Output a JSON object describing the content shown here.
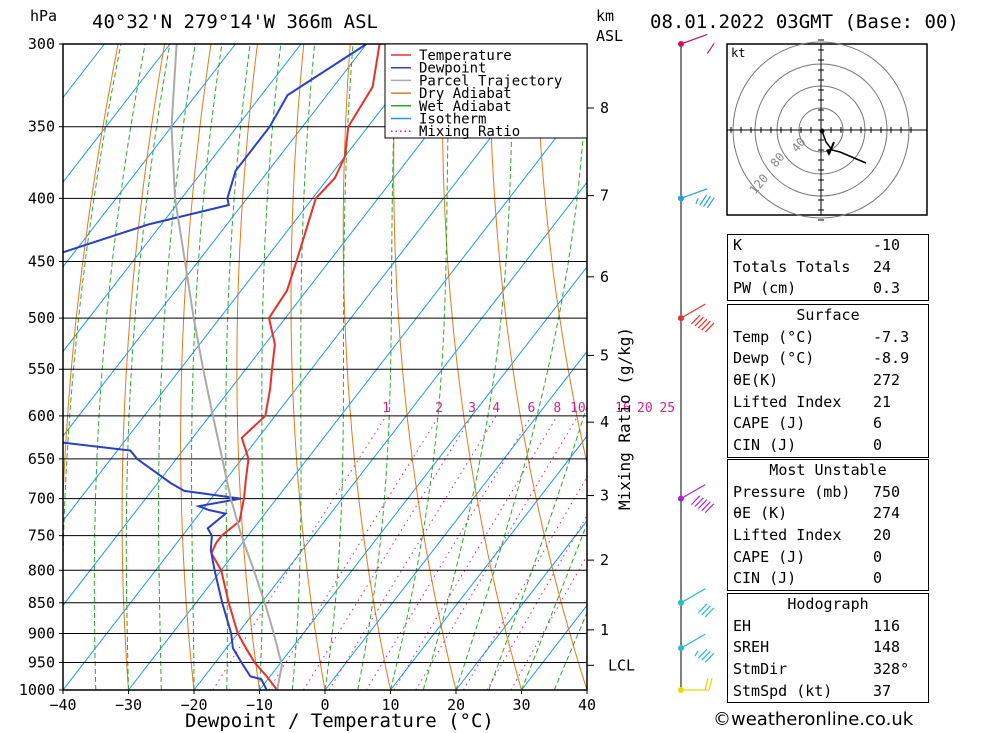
{
  "header": {
    "units_p": "hPa",
    "location": "40°32'N  279°14'W  366m  ASL",
    "km_label": "km",
    "asl_label": "ASL",
    "datetime": "08.01.2022  03GMT  (Base: 00)"
  },
  "chart_data": {
    "type": "line",
    "title": "40°32'N  279°14'W  366m  ASL",
    "xlabel": "Dewpoint / Temperature (°C)",
    "ylabel": "hPa",
    "xlim": [
      -40,
      40
    ],
    "ylim": [
      1000,
      300
    ],
    "x_ticks": [
      -40,
      -30,
      -20,
      -10,
      0,
      10,
      20,
      30,
      40
    ],
    "p_ticks": [
      300,
      350,
      400,
      450,
      500,
      550,
      600,
      650,
      700,
      750,
      800,
      850,
      900,
      950,
      1000
    ],
    "km_ticks": [
      {
        "p": 338,
        "label": "8"
      },
      {
        "p": 398,
        "label": "7"
      },
      {
        "p": 463,
        "label": "6"
      },
      {
        "p": 536,
        "label": "5"
      },
      {
        "p": 607,
        "label": "4"
      },
      {
        "p": 696,
        "label": "3"
      },
      {
        "p": 785,
        "label": "2"
      },
      {
        "p": 894,
        "label": "1"
      },
      {
        "p": 955,
        "label": "LCL"
      }
    ],
    "mixing_ratio_label": "Mixing Ratio (g/kg)",
    "mixing_ratio_values": [
      "1",
      "2",
      "3",
      "4",
      "6",
      "8",
      "10",
      "16",
      "20",
      "25"
    ],
    "legend": [
      "Temperature",
      "Dewpoint",
      "Parcel Trajectory",
      "Dry Adiabat",
      "Wet Adiabat",
      "Isotherm",
      "Mixing Ratio"
    ],
    "legend_position": "top-right",
    "series": [
      {
        "name": "Temperature",
        "color": "#e8302a",
        "points": [
          [
            1000,
            -7.3
          ],
          [
            975,
            -10.5
          ],
          [
            950,
            -14
          ],
          [
            925,
            -17
          ],
          [
            900,
            -20
          ],
          [
            850,
            -25
          ],
          [
            800,
            -30
          ],
          [
            775,
            -33.5
          ],
          [
            760,
            -34
          ],
          [
            750,
            -34
          ],
          [
            730,
            -33
          ],
          [
            700,
            -35
          ],
          [
            675,
            -37
          ],
          [
            650,
            -39
          ],
          [
            625,
            -42.5
          ],
          [
            600,
            -41.5
          ],
          [
            570,
            -44
          ],
          [
            550,
            -46
          ],
          [
            525,
            -48.5
          ],
          [
            500,
            -52.5
          ],
          [
            475,
            -53
          ],
          [
            450,
            -55
          ],
          [
            400,
            -59.5
          ],
          [
            385,
            -59
          ],
          [
            370,
            -60
          ],
          [
            350,
            -63
          ],
          [
            325,
            -64
          ],
          [
            300,
            -68
          ]
        ]
      },
      {
        "name": "Dewpoint",
        "color": "#2a3ec8",
        "points": [
          [
            1000,
            -8.9
          ],
          [
            980,
            -11
          ],
          [
            975,
            -13
          ],
          [
            950,
            -16
          ],
          [
            925,
            -19
          ],
          [
            900,
            -21
          ],
          [
            850,
            -26
          ],
          [
            800,
            -31
          ],
          [
            770,
            -34
          ],
          [
            750,
            -35.5
          ],
          [
            740,
            -37
          ],
          [
            720,
            -36
          ],
          [
            715,
            -39
          ],
          [
            710,
            -41
          ],
          [
            700,
            -35.5
          ],
          [
            690,
            -45
          ],
          [
            680,
            -48
          ],
          [
            650,
            -56
          ],
          [
            640,
            -58
          ],
          [
            625,
            -76
          ],
          [
            550,
            -85
          ],
          [
            450,
            -95
          ],
          [
            420,
            -82
          ],
          [
            405,
            -72
          ],
          [
            400,
            -73
          ],
          [
            380,
            -75
          ],
          [
            350,
            -75
          ],
          [
            330,
            -76
          ],
          [
            300,
            -70
          ]
        ]
      },
      {
        "name": "Parcel Trajectory",
        "color": "#aaaaaa",
        "points": [
          [
            1000,
            -7.3
          ],
          [
            955,
            -9.5
          ],
          [
            900,
            -14.5
          ],
          [
            850,
            -19.5
          ],
          [
            800,
            -25
          ],
          [
            750,
            -31
          ],
          [
            700,
            -37
          ],
          [
            650,
            -43
          ],
          [
            600,
            -49.5
          ],
          [
            550,
            -56.5
          ],
          [
            500,
            -64
          ],
          [
            450,
            -72
          ],
          [
            400,
            -81
          ],
          [
            350,
            -90
          ],
          [
            300,
            -99
          ]
        ]
      }
    ],
    "wind_barbs": [
      {
        "p": 1000,
        "color": "#e6d800",
        "dir": 270,
        "speed": 20
      },
      {
        "p": 925,
        "color": "#22c0c0",
        "dir": 300,
        "speed": 35
      },
      {
        "p": 850,
        "color": "#22c0c0",
        "dir": 300,
        "speed": 30
      },
      {
        "p": 700,
        "color": "#aa22cc",
        "dir": 300,
        "speed": 50
      },
      {
        "p": 500,
        "color": "#e8302a",
        "dir": 300,
        "speed": 50
      },
      {
        "p": 400,
        "color": "#22a0e0",
        "dir": 290,
        "speed": 35
      },
      {
        "p": 300,
        "color": "#cc1166",
        "dir": 290,
        "speed": 10
      }
    ]
  },
  "hodograph": {
    "unit": "kt",
    "ring_labels": [
      "40",
      "80",
      "120"
    ]
  },
  "indices": {
    "k_label": "K",
    "k_value": "-10",
    "tt_label": "Totals Totals",
    "tt_value": "24",
    "pw_label": "PW (cm)",
    "pw_value": "0.3"
  },
  "surface": {
    "title": "Surface",
    "temp_label": "Temp (°C)",
    "temp_value": "-7.3",
    "dewp_label": "Dewp (°C)",
    "dewp_value": "-8.9",
    "theta_label": "θE(K)",
    "theta_value": "272",
    "li_label": "Lifted Index",
    "li_value": "21",
    "cape_label": "CAPE (J)",
    "cape_value": "6",
    "cin_label": "CIN (J)",
    "cin_value": "0"
  },
  "most_unstable": {
    "title": "Most Unstable",
    "pres_label": "Pressure (mb)",
    "pres_value": "750",
    "theta_label": "θE (K)",
    "theta_value": "274",
    "li_label": "Lifted Index",
    "li_value": "20",
    "cape_label": "CAPE (J)",
    "cape_value": "0",
    "cin_label": "CIN (J)",
    "cin_value": "0"
  },
  "hodo_stats": {
    "title": "Hodograph",
    "eh_label": "EH",
    "eh_value": "116",
    "sreh_label": "SREH",
    "sreh_value": "148",
    "dir_label": "StmDir",
    "dir_value": "328°",
    "spd_label": "StmSpd (kt)",
    "spd_value": "37"
  },
  "footer": {
    "credit": "©weatheronline.co.uk"
  },
  "colors": {
    "isotherm": "#1e9be0",
    "dry_adiabat": "#e07a1e",
    "wet_adiabat": "#2aa82a",
    "mixing_ratio": "#c8268c"
  }
}
